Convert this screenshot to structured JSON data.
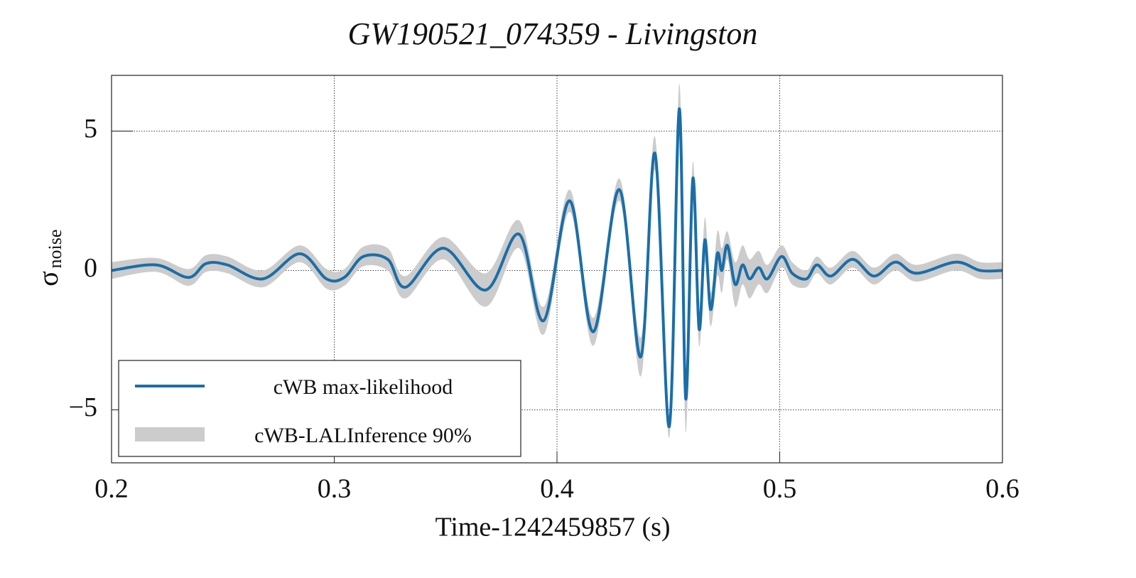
{
  "chart_data": {
    "type": "line",
    "title": "GW190521_074359 - Livingston",
    "xlabel": "Time-1242459857 (s)",
    "ylabel": {
      "symbol": "σ",
      "subscript": "noise"
    },
    "xlim": [
      0.2,
      0.6
    ],
    "ylim": [
      -6.9,
      7
    ],
    "xticks": [
      0.2,
      0.3,
      0.4,
      0.5,
      0.6
    ],
    "yticks": [
      {
        "value": -5,
        "label": "−5"
      },
      0,
      5
    ],
    "grid": true,
    "legend": "lower left",
    "x": [
      0.2,
      0.22,
      0.2345,
      0.2425,
      0.252,
      0.268,
      0.2845,
      0.2965,
      0.3045,
      0.313,
      0.324,
      0.332,
      0.349,
      0.368,
      0.383,
      0.394,
      0.4057,
      0.4163,
      0.428,
      0.4376,
      0.444,
      0.4504,
      0.4549,
      0.4578,
      0.461,
      0.4638,
      0.4664,
      0.469,
      0.472,
      0.474,
      0.4765,
      0.48,
      0.4833,
      0.4865,
      0.4906,
      0.4945,
      0.5008,
      0.5056,
      0.512,
      0.5167,
      0.523,
      0.5327,
      0.5423,
      0.5519,
      0.5615,
      0.579,
      0.59,
      0.6
    ],
    "series": [
      {
        "name": "cWB max-likelihood",
        "color": "#1a6ea8",
        "values": [
          0,
          0.2,
          -0.25,
          0.25,
          0.2,
          -0.3,
          0.6,
          -0.3,
          -0.25,
          0.5,
          0.4,
          -0.6,
          0.8,
          -0.7,
          1.3,
          -1.8,
          2.5,
          -2.2,
          2.9,
          -3.1,
          4.2,
          -5.6,
          5.8,
          -4.6,
          3.3,
          -2.1,
          1.1,
          -1.4,
          0.6,
          0,
          0.9,
          -0.5,
          0.2,
          -0.3,
          0.1,
          -0.3,
          0.5,
          -0.1,
          -0.3,
          0.2,
          -0.2,
          0.4,
          -0.2,
          0.3,
          -0.1,
          0.3,
          0,
          0
        ]
      },
      {
        "name": "cWB-LALInference 90%",
        "color": "#cccccc",
        "upper": [
          0.3,
          0.45,
          0.05,
          0.55,
          0.5,
          0,
          0.9,
          0.05,
          0.05,
          0.85,
          0.8,
          -0.2,
          1.2,
          -0.1,
          1.8,
          -1.3,
          2.9,
          -1.7,
          3.3,
          -2.4,
          4.8,
          -5.2,
          6.7,
          -3.4,
          3.9,
          -1.5,
          1.9,
          -0.8,
          1.4,
          0.8,
          1.4,
          0.3,
          0.9,
          0.4,
          0.7,
          0.2,
          0.9,
          0.3,
          0,
          0.5,
          0.1,
          0.7,
          0.1,
          0.6,
          0.2,
          0.6,
          0.3,
          0.3
        ],
        "lower": [
          -0.3,
          -0.05,
          -0.55,
          -0.05,
          -0.1,
          -0.6,
          0.3,
          -0.65,
          -0.55,
          0.15,
          0,
          -1,
          0.4,
          -1.3,
          0.8,
          -2.3,
          2.1,
          -2.7,
          2.5,
          -3.8,
          3.6,
          -6,
          4.9,
          -5.8,
          2.7,
          -2.7,
          0.3,
          -2,
          -0.2,
          -0.8,
          0.4,
          -1.3,
          -0.5,
          -1,
          -0.5,
          -0.8,
          0.1,
          -0.5,
          -0.6,
          -0.1,
          -0.5,
          0.1,
          -0.5,
          0,
          -0.4,
          0,
          -0.3,
          -0.3
        ]
      }
    ]
  }
}
